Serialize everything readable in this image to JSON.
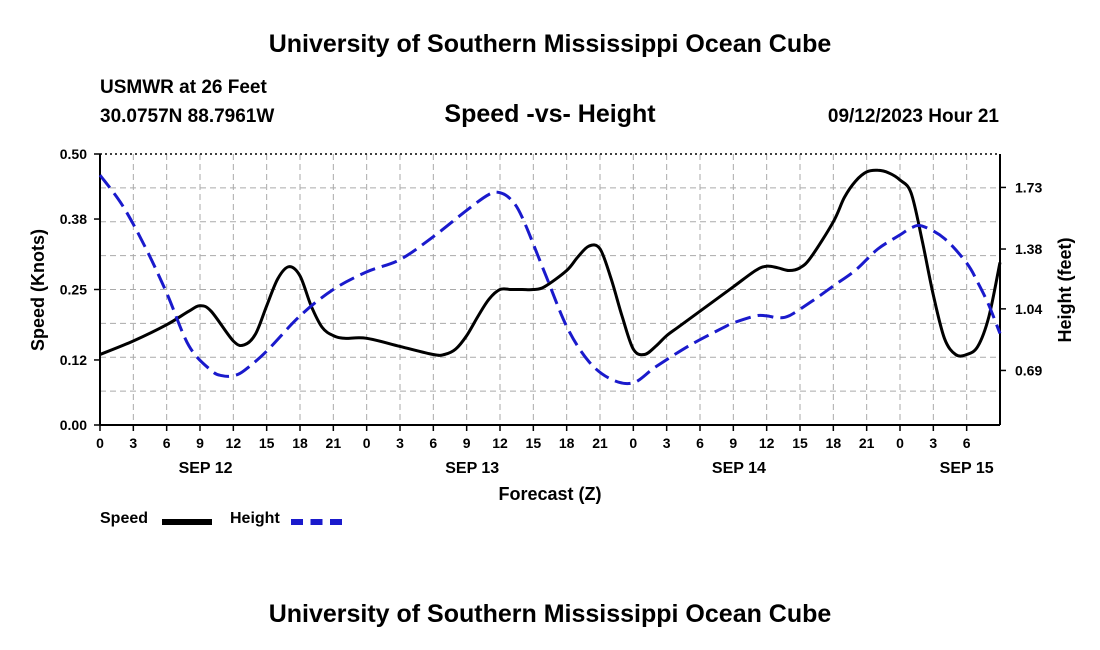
{
  "header": {
    "title": "University of Southern Mississippi Ocean Cube",
    "station": "USMWR at 26 Feet",
    "coords": "30.0757N  88.7961W",
    "subtitle": "Speed -vs- Height",
    "date": "09/12/2023 Hour 21"
  },
  "footer": {
    "title": "University of Southern Mississippi Ocean Cube"
  },
  "colors": {
    "speed": "#000000",
    "height": "#1a1acc",
    "grid": "#aaaaaa"
  },
  "chart_data": {
    "type": "line",
    "xlabel": "Forecast (Z)",
    "ylabel": "Speed (Knots)",
    "y2label": "Height (feet)",
    "x_range": [
      0,
      81
    ],
    "x_tick_labels": [
      "0",
      "3",
      "6",
      "9",
      "12",
      "15",
      "18",
      "21",
      "0",
      "3",
      "6",
      "9",
      "12",
      "15",
      "18",
      "21",
      "0",
      "3",
      "6",
      "9",
      "12",
      "15",
      "18",
      "21",
      "0",
      "3",
      "6"
    ],
    "date_labels": [
      {
        "label": "SEP 12",
        "hour": 9.5
      },
      {
        "label": "SEP 13",
        "hour": 33.5
      },
      {
        "label": "SEP 14",
        "hour": 57.5
      },
      {
        "label": "SEP 15",
        "hour": 78
      }
    ],
    "ylim": [
      0,
      0.5
    ],
    "y_ticks": [
      0.0,
      0.12,
      0.25,
      0.38,
      0.5
    ],
    "y_tick_labels": [
      "0.00",
      "0.12",
      "0.25",
      "0.38",
      "0.50"
    ],
    "y2lim": [
      0.38,
      1.92
    ],
    "y2_ticks": [
      0.69,
      1.04,
      1.38,
      1.73
    ],
    "y2_tick_labels": [
      "0.69",
      "1.04",
      "1.38",
      "1.73"
    ],
    "series": [
      {
        "name": "Speed",
        "axis": "left",
        "style": "solid",
        "x": [
          0,
          3,
          6,
          8,
          9,
          10,
          12,
          13,
          14,
          15,
          16,
          17,
          18,
          19,
          20,
          21,
          22,
          24,
          27,
          30,
          31,
          32,
          33,
          34,
          35,
          36,
          37,
          38,
          39,
          40,
          42,
          43,
          44,
          45,
          46,
          47,
          48,
          49,
          50,
          51,
          52,
          54,
          57,
          59,
          60,
          61,
          62,
          63,
          64,
          66,
          67,
          68,
          69,
          70,
          71,
          72,
          73,
          74,
          75,
          76,
          77,
          78,
          79,
          80,
          81
        ],
        "y": [
          0.13,
          0.155,
          0.185,
          0.21,
          0.22,
          0.21,
          0.155,
          0.148,
          0.168,
          0.22,
          0.27,
          0.292,
          0.275,
          0.22,
          0.18,
          0.165,
          0.16,
          0.16,
          0.145,
          0.13,
          0.13,
          0.14,
          0.165,
          0.2,
          0.232,
          0.25,
          0.25,
          0.25,
          0.25,
          0.255,
          0.285,
          0.31,
          0.33,
          0.325,
          0.27,
          0.2,
          0.14,
          0.13,
          0.145,
          0.165,
          0.18,
          0.21,
          0.255,
          0.285,
          0.293,
          0.29,
          0.285,
          0.29,
          0.31,
          0.375,
          0.42,
          0.45,
          0.467,
          0.47,
          0.465,
          0.452,
          0.428,
          0.34,
          0.24,
          0.16,
          0.13,
          0.13,
          0.145,
          0.2,
          0.3
        ]
      },
      {
        "name": "Height",
        "axis": "right",
        "style": "dashed",
        "x": [
          0,
          2,
          4,
          6,
          8,
          10,
          11,
          12,
          13,
          15,
          18,
          21,
          24,
          27,
          30,
          33,
          35,
          36,
          37,
          38,
          40,
          42,
          44,
          46,
          48,
          50,
          53,
          56,
          57,
          59,
          60,
          61,
          62,
          64,
          66,
          68,
          70,
          72,
          73,
          74,
          76,
          78,
          79,
          80,
          81
        ],
        "y": [
          1.8,
          1.63,
          1.4,
          1.13,
          0.83,
          0.69,
          0.66,
          0.66,
          0.69,
          0.8,
          1.0,
          1.15,
          1.25,
          1.32,
          1.45,
          1.6,
          1.69,
          1.7,
          1.66,
          1.56,
          1.25,
          0.94,
          0.74,
          0.64,
          0.62,
          0.71,
          0.83,
          0.93,
          0.96,
          1.0,
          1.0,
          0.99,
          1.0,
          1.08,
          1.17,
          1.26,
          1.38,
          1.46,
          1.5,
          1.51,
          1.44,
          1.3,
          1.19,
          1.06,
          0.9
        ]
      }
    ]
  },
  "legend": {
    "speed_label": "Speed",
    "height_label": "Height"
  }
}
